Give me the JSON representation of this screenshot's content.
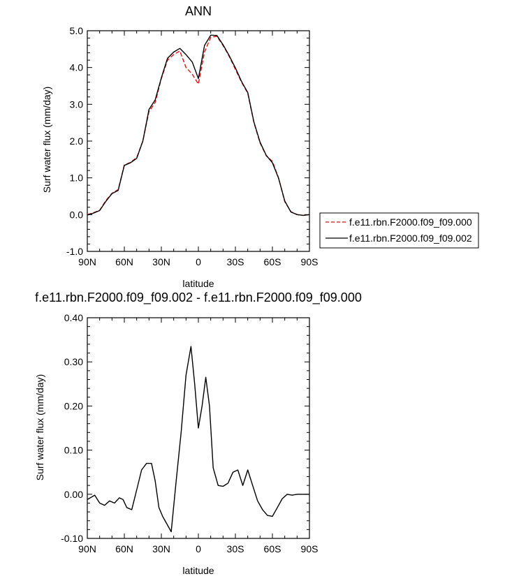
{
  "chart_data": [
    {
      "type": "line",
      "title": "ANN",
      "xlabel": "latitude",
      "ylabel": "Surf water flux (mm/day)",
      "xticks": [
        "90N",
        "60N",
        "30N",
        "0",
        "30S",
        "60S",
        "90S"
      ],
      "xlim": [
        90,
        -90
      ],
      "ylim": [
        -1.0,
        5.0
      ],
      "yticks": [
        "-1.0",
        "0.0",
        "1.0",
        "2.0",
        "3.0",
        "4.0",
        "5.0"
      ],
      "legend": "right",
      "x": [
        90,
        85,
        80,
        75,
        70,
        65,
        60,
        55,
        50,
        45,
        40,
        35,
        30,
        25,
        20,
        15,
        10,
        5,
        0,
        -5,
        -10,
        -15,
        -20,
        -25,
        -30,
        -35,
        -40,
        -45,
        -50,
        -55,
        -60,
        -65,
        -70,
        -75,
        -80,
        -85,
        -90
      ],
      "series": [
        {
          "name": "f.e11.rbn.F2000.f09_f09.000",
          "color": "#dd1111",
          "dash": true,
          "values": [
            0.0,
            0.05,
            0.12,
            0.38,
            0.58,
            0.68,
            1.35,
            1.42,
            1.55,
            2.0,
            2.8,
            3.05,
            3.7,
            4.2,
            4.35,
            4.45,
            4.0,
            3.82,
            3.55,
            4.42,
            4.82,
            4.85,
            4.6,
            4.3,
            3.95,
            3.6,
            3.3,
            2.5,
            1.95,
            1.6,
            1.45,
            1.0,
            0.35,
            0.08,
            0.0,
            -0.02,
            0.0
          ]
        },
        {
          "name": "f.e11.rbn.F2000.f09_f09.002",
          "color": "#000000",
          "dash": false,
          "values": [
            -0.01,
            0.04,
            0.11,
            0.36,
            0.57,
            0.66,
            1.34,
            1.41,
            1.53,
            2.0,
            2.86,
            3.12,
            3.72,
            4.25,
            4.42,
            4.52,
            4.35,
            4.15,
            3.7,
            4.6,
            4.88,
            4.87,
            4.62,
            4.32,
            3.99,
            3.62,
            3.32,
            2.52,
            1.97,
            1.61,
            1.41,
            0.99,
            0.37,
            0.07,
            0.0,
            -0.02,
            0.0
          ]
        }
      ]
    },
    {
      "type": "line",
      "title": "f.e11.rbn.F2000.f09_f09.002 - f.e11.rbn.F2000.f09_f09.000",
      "xlabel": "latitude",
      "ylabel": "Surf water flux (mm/day)",
      "xticks": [
        "90N",
        "60N",
        "30N",
        "0",
        "30S",
        "60S",
        "90S"
      ],
      "xlim": [
        90,
        -90
      ],
      "ylim": [
        -0.1,
        0.4
      ],
      "yticks": [
        "-0.10",
        "0.00",
        "0.10",
        "0.20",
        "0.30",
        "0.40"
      ],
      "x": [
        90,
        84,
        80,
        76,
        72,
        68,
        64,
        61,
        58,
        54,
        50,
        46,
        42,
        38,
        35,
        32,
        29,
        26,
        22,
        18,
        14,
        10,
        6,
        3,
        0,
        -3,
        -6,
        -9,
        -12,
        -16,
        -20,
        -24,
        -28,
        -32,
        -36,
        -40,
        -44,
        -48,
        -52,
        -56,
        -60,
        -64,
        -68,
        -72,
        -76,
        -80,
        -84,
        -90
      ],
      "series": [
        {
          "name": "",
          "color": "#000000",
          "dash": false,
          "values": [
            -0.012,
            -0.002,
            -0.02,
            -0.025,
            -0.015,
            -0.02,
            -0.008,
            -0.012,
            -0.03,
            -0.035,
            0.01,
            0.055,
            0.07,
            0.07,
            0.03,
            -0.03,
            -0.05,
            -0.065,
            -0.085,
            0.03,
            0.14,
            0.27,
            0.335,
            0.25,
            0.15,
            0.2,
            0.265,
            0.2,
            0.06,
            0.02,
            0.018,
            0.025,
            0.05,
            0.055,
            0.02,
            0.055,
            0.02,
            -0.015,
            -0.035,
            -0.048,
            -0.05,
            -0.03,
            -0.01,
            0.0,
            -0.002,
            0.0,
            0.0,
            0.0
          ]
        }
      ]
    }
  ]
}
